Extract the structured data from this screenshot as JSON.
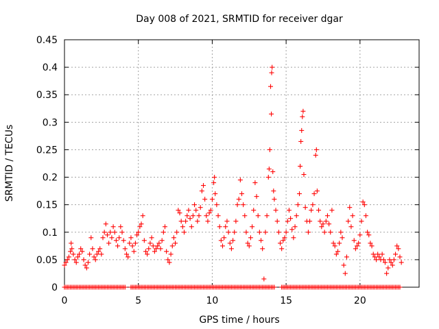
{
  "chart_data": {
    "type": "scatter",
    "title": "Day 008 of 2021, SRMTID for receiver dgar",
    "xlabel": "GPS time / hours",
    "ylabel": "SRMTID / TECUs",
    "xlim": [
      0,
      24
    ],
    "ylim": [
      0,
      0.45
    ],
    "xticks": [
      0,
      5,
      10,
      15,
      20
    ],
    "xtick_labels": [
      "0",
      "5",
      "10",
      "15",
      "20"
    ],
    "yticks": [
      0,
      0.05,
      0.1,
      0.15,
      0.2,
      0.25,
      0.3,
      0.35,
      0.4,
      0.45
    ],
    "ytick_labels": [
      "0",
      "0.05",
      "0.1",
      "0.15",
      "0.2",
      "0.25",
      "0.3",
      "0.35",
      "0.4",
      "0.45"
    ],
    "grid": true,
    "marker": "+",
    "color": "#ff0000",
    "series": [
      {
        "name": "SRMTID",
        "points": [
          [
            0.0,
            0.04
          ],
          [
            0.1,
            0.045
          ],
          [
            0.2,
            0.05
          ],
          [
            0.3,
            0.055
          ],
          [
            0.4,
            0.065
          ],
          [
            0.45,
            0.08
          ],
          [
            0.5,
            0.07
          ],
          [
            0.6,
            0.06
          ],
          [
            0.7,
            0.05
          ],
          [
            0.8,
            0.045
          ],
          [
            0.9,
            0.055
          ],
          [
            1.0,
            0.06
          ],
          [
            1.1,
            0.07
          ],
          [
            1.2,
            0.065
          ],
          [
            1.3,
            0.05
          ],
          [
            1.4,
            0.04
          ],
          [
            1.5,
            0.035
          ],
          [
            1.6,
            0.045
          ],
          [
            1.7,
            0.06
          ],
          [
            1.8,
            0.09
          ],
          [
            1.9,
            0.07
          ],
          [
            2.0,
            0.055
          ],
          [
            2.1,
            0.05
          ],
          [
            2.2,
            0.06
          ],
          [
            2.3,
            0.065
          ],
          [
            2.4,
            0.07
          ],
          [
            2.5,
            0.06
          ],
          [
            2.6,
            0.09
          ],
          [
            2.7,
            0.1
          ],
          [
            2.8,
            0.115
          ],
          [
            2.9,
            0.095
          ],
          [
            3.0,
            0.08
          ],
          [
            3.1,
            0.1
          ],
          [
            3.2,
            0.09
          ],
          [
            3.3,
            0.11
          ],
          [
            3.4,
            0.1
          ],
          [
            3.5,
            0.085
          ],
          [
            3.6,
            0.075
          ],
          [
            3.7,
            0.09
          ],
          [
            3.8,
            0.11
          ],
          [
            3.9,
            0.1
          ],
          [
            4.0,
            0.085
          ],
          [
            4.1,
            0.07
          ],
          [
            4.2,
            0.06
          ],
          [
            4.3,
            0.055
          ],
          [
            4.4,
            0.08
          ],
          [
            4.5,
            0.09
          ],
          [
            4.6,
            0.075
          ],
          [
            4.7,
            0.065
          ],
          [
            4.8,
            0.08
          ],
          [
            4.9,
            0.095
          ],
          [
            5.0,
            0.1
          ],
          [
            5.1,
            0.11
          ],
          [
            5.2,
            0.115
          ],
          [
            5.3,
            0.13
          ],
          [
            5.4,
            0.085
          ],
          [
            5.5,
            0.065
          ],
          [
            5.6,
            0.06
          ],
          [
            5.7,
            0.07
          ],
          [
            5.8,
            0.08
          ],
          [
            5.9,
            0.09
          ],
          [
            6.0,
            0.075
          ],
          [
            6.1,
            0.065
          ],
          [
            6.2,
            0.07
          ],
          [
            6.3,
            0.075
          ],
          [
            6.4,
            0.08
          ],
          [
            6.5,
            0.07
          ],
          [
            6.6,
            0.085
          ],
          [
            6.7,
            0.1
          ],
          [
            6.8,
            0.11
          ],
          [
            6.9,
            0.065
          ],
          [
            7.0,
            0.05
          ],
          [
            7.1,
            0.045
          ],
          [
            7.2,
            0.06
          ],
          [
            7.3,
            0.075
          ],
          [
            7.4,
            0.09
          ],
          [
            7.5,
            0.08
          ],
          [
            7.6,
            0.1
          ],
          [
            7.7,
            0.14
          ],
          [
            7.8,
            0.135
          ],
          [
            7.9,
            0.12
          ],
          [
            8.0,
            0.11
          ],
          [
            8.1,
            0.1
          ],
          [
            8.2,
            0.12
          ],
          [
            8.3,
            0.13
          ],
          [
            8.4,
            0.14
          ],
          [
            8.5,
            0.125
          ],
          [
            8.6,
            0.11
          ],
          [
            8.7,
            0.13
          ],
          [
            8.8,
            0.15
          ],
          [
            8.9,
            0.14
          ],
          [
            9.0,
            0.12
          ],
          [
            9.1,
            0.13
          ],
          [
            9.2,
            0.145
          ],
          [
            9.3,
            0.175
          ],
          [
            9.4,
            0.185
          ],
          [
            9.5,
            0.16
          ],
          [
            9.6,
            0.13
          ],
          [
            9.7,
            0.12
          ],
          [
            9.8,
            0.135
          ],
          [
            9.9,
            0.14
          ],
          [
            10.0,
            0.16
          ],
          [
            10.1,
            0.19
          ],
          [
            10.15,
            0.2
          ],
          [
            10.2,
            0.17
          ],
          [
            10.3,
            0.15
          ],
          [
            10.4,
            0.13
          ],
          [
            10.5,
            0.11
          ],
          [
            10.6,
            0.085
          ],
          [
            10.7,
            0.075
          ],
          [
            10.8,
            0.09
          ],
          [
            10.9,
            0.11
          ],
          [
            11.0,
            0.12
          ],
          [
            11.1,
            0.1
          ],
          [
            11.2,
            0.08
          ],
          [
            11.3,
            0.07
          ],
          [
            11.4,
            0.085
          ],
          [
            11.5,
            0.1
          ],
          [
            11.6,
            0.12
          ],
          [
            11.7,
            0.15
          ],
          [
            11.8,
            0.16
          ],
          [
            11.9,
            0.195
          ],
          [
            12.0,
            0.17
          ],
          [
            12.1,
            0.15
          ],
          [
            12.2,
            0.13
          ],
          [
            12.3,
            0.1
          ],
          [
            12.4,
            0.08
          ],
          [
            12.5,
            0.075
          ],
          [
            12.6,
            0.09
          ],
          [
            12.7,
            0.11
          ],
          [
            12.8,
            0.14
          ],
          [
            12.9,
            0.19
          ],
          [
            13.0,
            0.165
          ],
          [
            13.1,
            0.13
          ],
          [
            13.2,
            0.1
          ],
          [
            13.3,
            0.085
          ],
          [
            13.4,
            0.07
          ],
          [
            13.5,
            0.015
          ],
          [
            13.6,
            0.1
          ],
          [
            13.7,
            0.13
          ],
          [
            13.8,
            0.2
          ],
          [
            13.85,
            0.215
          ],
          [
            13.9,
            0.25
          ],
          [
            13.95,
            0.365
          ],
          [
            14.0,
            0.315
          ],
          [
            14.02,
            0.39
          ],
          [
            14.05,
            0.4
          ],
          [
            14.1,
            0.21
          ],
          [
            14.15,
            0.175
          ],
          [
            14.2,
            0.16
          ],
          [
            14.3,
            0.14
          ],
          [
            14.4,
            0.12
          ],
          [
            14.5,
            0.1
          ],
          [
            14.6,
            0.08
          ],
          [
            14.7,
            0.07
          ],
          [
            14.8,
            0.085
          ],
          [
            14.9,
            0.09
          ],
          [
            15.0,
            0.1
          ],
          [
            15.1,
            0.12
          ],
          [
            15.2,
            0.14
          ],
          [
            15.3,
            0.125
          ],
          [
            15.4,
            0.105
          ],
          [
            15.5,
            0.09
          ],
          [
            15.6,
            0.11
          ],
          [
            15.7,
            0.13
          ],
          [
            15.8,
            0.15
          ],
          [
            15.9,
            0.17
          ],
          [
            15.95,
            0.22
          ],
          [
            16.0,
            0.265
          ],
          [
            16.05,
            0.285
          ],
          [
            16.1,
            0.31
          ],
          [
            16.15,
            0.32
          ],
          [
            16.2,
            0.205
          ],
          [
            16.3,
            0.145
          ],
          [
            16.4,
            0.12
          ],
          [
            16.5,
            0.1
          ],
          [
            16.6,
            0.12
          ],
          [
            16.7,
            0.14
          ],
          [
            16.8,
            0.15
          ],
          [
            16.9,
            0.17
          ],
          [
            17.0,
            0.24
          ],
          [
            17.05,
            0.25
          ],
          [
            17.1,
            0.175
          ],
          [
            17.2,
            0.14
          ],
          [
            17.3,
            0.12
          ],
          [
            17.4,
            0.11
          ],
          [
            17.5,
            0.115
          ],
          [
            17.6,
            0.1
          ],
          [
            17.7,
            0.12
          ],
          [
            17.8,
            0.13
          ],
          [
            17.9,
            0.115
          ],
          [
            18.0,
            0.1
          ],
          [
            18.1,
            0.14
          ],
          [
            18.2,
            0.08
          ],
          [
            18.3,
            0.075
          ],
          [
            18.4,
            0.06
          ],
          [
            18.5,
            0.065
          ],
          [
            18.6,
            0.08
          ],
          [
            18.7,
            0.1
          ],
          [
            18.8,
            0.09
          ],
          [
            18.9,
            0.04
          ],
          [
            19.0,
            0.025
          ],
          [
            19.1,
            0.055
          ],
          [
            19.2,
            0.12
          ],
          [
            19.3,
            0.145
          ],
          [
            19.4,
            0.11
          ],
          [
            19.5,
            0.13
          ],
          [
            19.6,
            0.085
          ],
          [
            19.7,
            0.07
          ],
          [
            19.8,
            0.075
          ],
          [
            19.9,
            0.08
          ],
          [
            20.0,
            0.095
          ],
          [
            20.1,
            0.12
          ],
          [
            20.2,
            0.155
          ],
          [
            20.3,
            0.15
          ],
          [
            20.4,
            0.13
          ],
          [
            20.5,
            0.1
          ],
          [
            20.6,
            0.095
          ],
          [
            20.7,
            0.08
          ],
          [
            20.8,
            0.075
          ],
          [
            20.9,
            0.06
          ],
          [
            21.0,
            0.055
          ],
          [
            21.1,
            0.05
          ],
          [
            21.2,
            0.06
          ],
          [
            21.3,
            0.055
          ],
          [
            21.4,
            0.05
          ],
          [
            21.5,
            0.06
          ],
          [
            21.6,
            0.05
          ],
          [
            21.7,
            0.045
          ],
          [
            21.8,
            0.025
          ],
          [
            21.9,
            0.035
          ],
          [
            22.0,
            0.05
          ],
          [
            22.1,
            0.045
          ],
          [
            22.2,
            0.04
          ],
          [
            22.3,
            0.05
          ],
          [
            22.4,
            0.06
          ],
          [
            22.5,
            0.075
          ],
          [
            22.6,
            0.07
          ],
          [
            22.7,
            0.055
          ],
          [
            22.8,
            0.045
          ]
        ],
        "zero_points": [
          0.0,
          0.1,
          0.2,
          0.3,
          0.4,
          0.5,
          0.6,
          0.7,
          0.8,
          0.9,
          1.0,
          1.1,
          1.2,
          1.3,
          1.4,
          1.5,
          1.6,
          1.7,
          1.8,
          1.9,
          2.0,
          2.1,
          2.2,
          2.3,
          2.4,
          2.5,
          2.6,
          2.7,
          2.8,
          2.9,
          3.0,
          3.1,
          3.2,
          3.3,
          3.4,
          3.5,
          3.6,
          3.7,
          3.8,
          3.9,
          4.0,
          4.1,
          4.5,
          4.6,
          4.7,
          4.8,
          4.9,
          5.0,
          5.1,
          5.2,
          5.3,
          5.4,
          5.5,
          5.6,
          5.7,
          5.8,
          5.9,
          6.0,
          6.1,
          6.2,
          6.3,
          6.4,
          6.5,
          6.6,
          6.7,
          6.8,
          6.9,
          7.0,
          7.1,
          7.2,
          7.3,
          7.4,
          7.5,
          7.6,
          7.7,
          7.8,
          7.9,
          8.0,
          8.1,
          8.2,
          8.3,
          8.4,
          8.5,
          8.6,
          8.7,
          8.8,
          8.9,
          9.0,
          9.1,
          9.2,
          9.3,
          9.4,
          9.5,
          9.6,
          9.7,
          9.8,
          9.9,
          10.0,
          10.1,
          10.2,
          10.3,
          10.4,
          10.5,
          10.6,
          10.7,
          10.8,
          10.9,
          11.0,
          11.1,
          11.2,
          11.3,
          11.4,
          11.5,
          11.6,
          11.7,
          11.8,
          11.9,
          12.0,
          12.1,
          12.2,
          12.3,
          12.4,
          12.5,
          12.6,
          12.7,
          12.8,
          12.9,
          13.0,
          13.1,
          13.2,
          13.3,
          13.4,
          13.5,
          13.6,
          13.7,
          13.8,
          13.9,
          14.0,
          14.1,
          14.2,
          14.7,
          14.8,
          14.9,
          15.0,
          15.1,
          15.2,
          15.3,
          15.4,
          15.5,
          15.6,
          15.7,
          15.8,
          15.9,
          16.0,
          16.1,
          16.2,
          16.3,
          16.4,
          16.5,
          16.6,
          16.7,
          16.8,
          16.9,
          17.0,
          17.1,
          17.2,
          17.3,
          17.4,
          17.5,
          17.6,
          17.7,
          17.8,
          17.9,
          18.0,
          18.1,
          18.2,
          18.3,
          18.4,
          18.5,
          18.6,
          18.7,
          18.8,
          18.9,
          19.0,
          19.1,
          19.2,
          19.3,
          19.4,
          19.5,
          19.6,
          19.7,
          19.8,
          19.9,
          20.0,
          20.1,
          20.2,
          20.3,
          20.4,
          20.5,
          20.6,
          20.7,
          20.8,
          20.9,
          21.0,
          21.1,
          21.2,
          21.3,
          21.4,
          21.5,
          21.6,
          21.7,
          21.8,
          21.9,
          22.0,
          22.1,
          22.2,
          22.3,
          22.4,
          22.5,
          22.6,
          22.7
        ]
      }
    ]
  }
}
